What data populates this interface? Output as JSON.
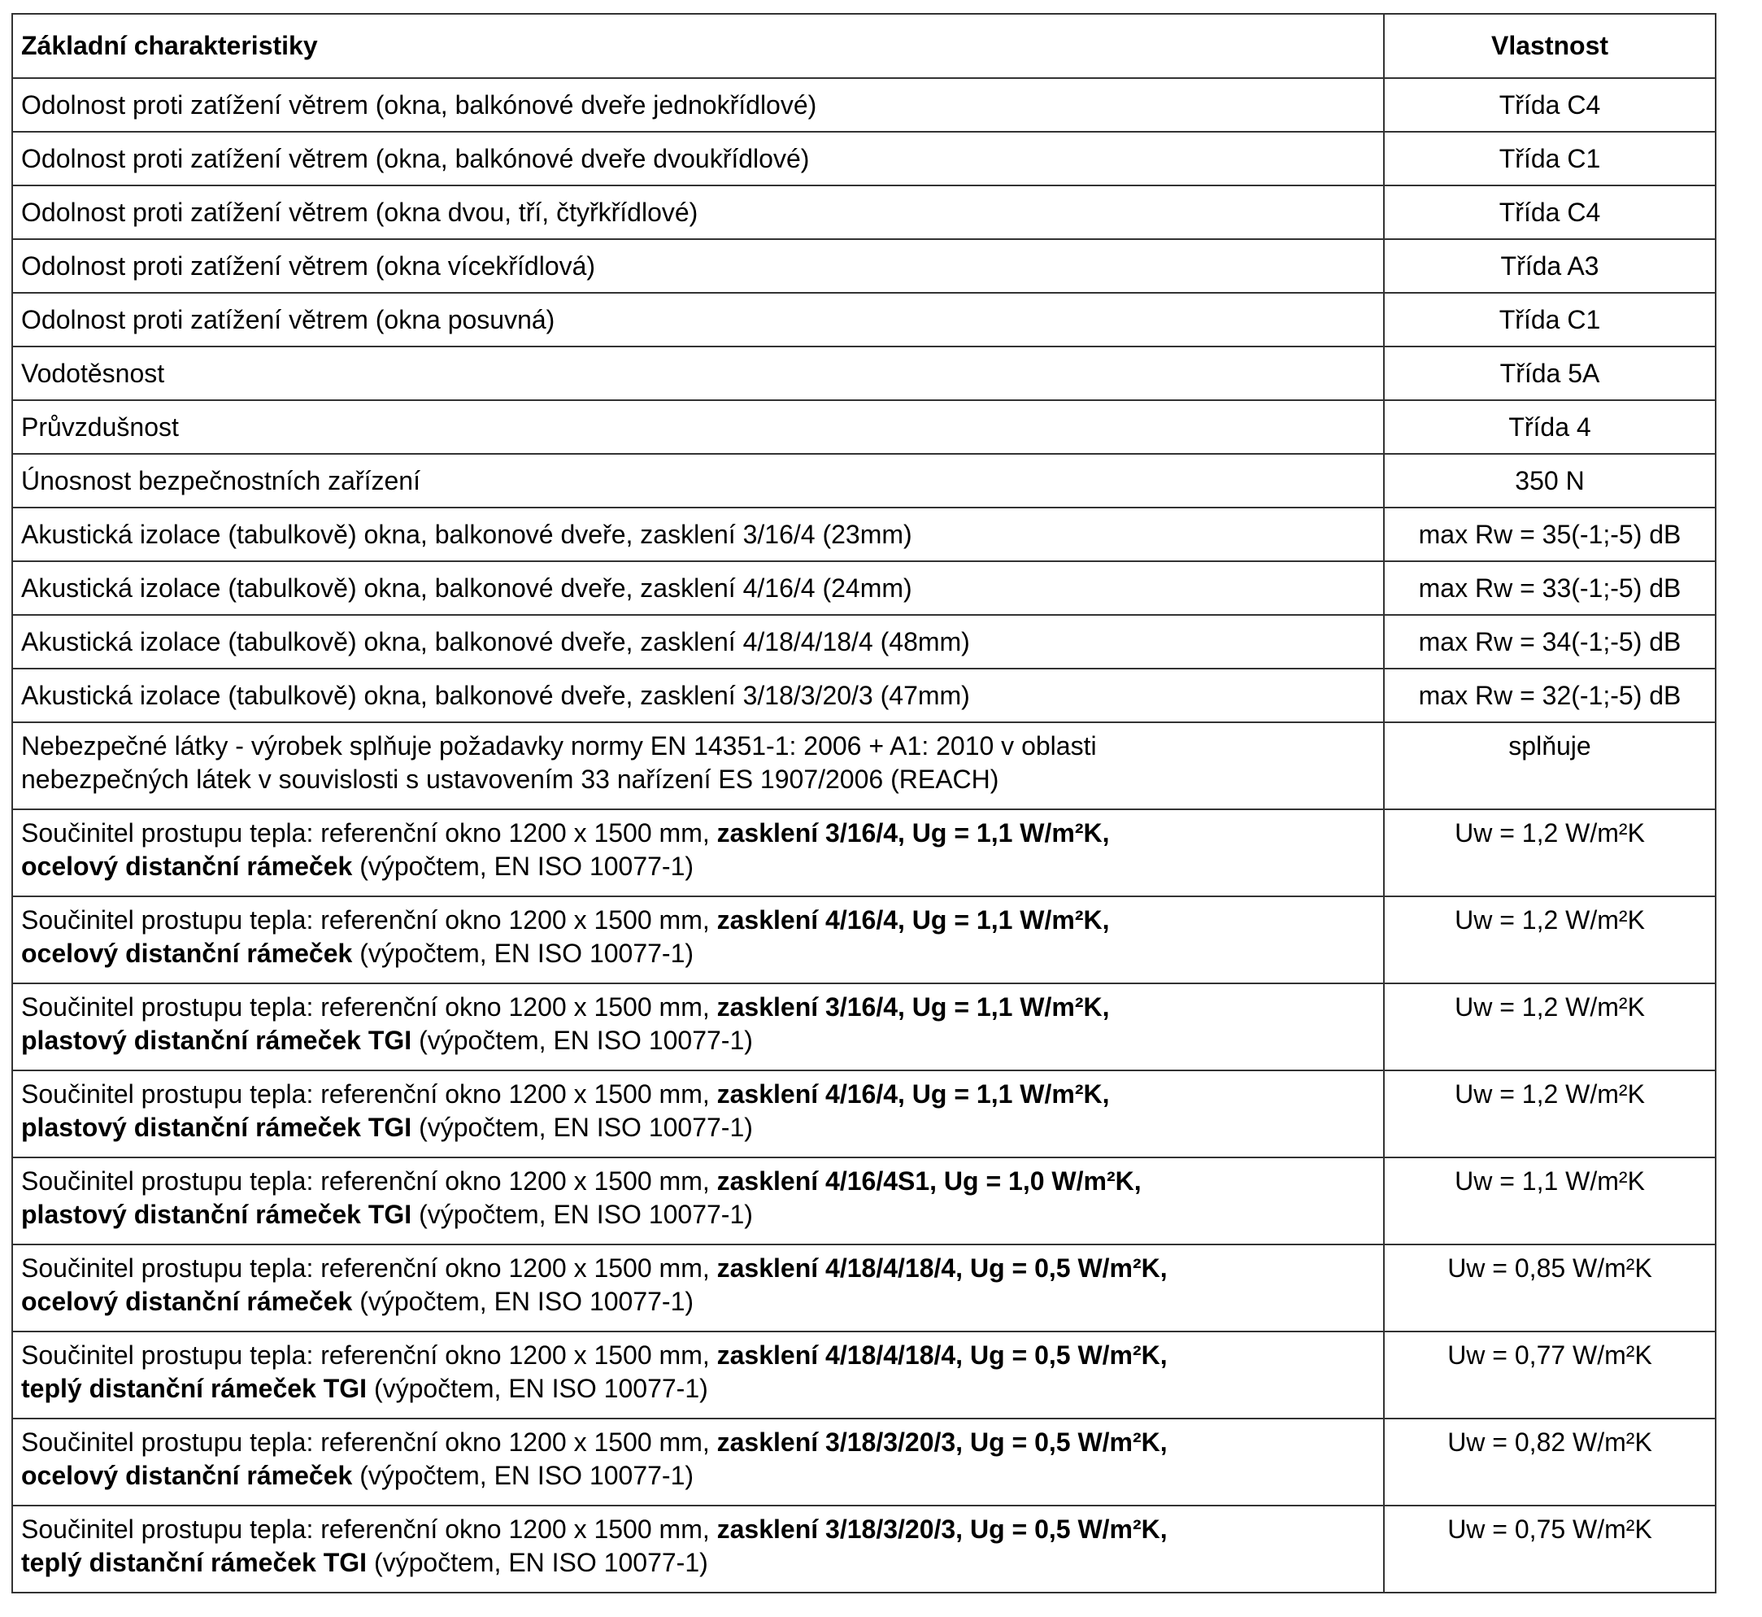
{
  "header": {
    "col1": "Základní charakteristiky",
    "col2": "Vlastnost"
  },
  "rows": [
    {
      "label": "Odolnost proti zatížení větrem (okna, balkónové dveře jednokřídlové)",
      "value": "Třída C4"
    },
    {
      "label": "Odolnost proti zatížení větrem (okna, balkónové dveře dvoukřídlové)",
      "value": "Třída C1"
    },
    {
      "label": "Odolnost proti zatížení větrem (okna dvou, tří, čtyřkřídlové)",
      "value": "Třída C4"
    },
    {
      "label": "Odolnost proti zatížení větrem (okna vícekřídlová)",
      "value": "Třída A3"
    },
    {
      "label": "Odolnost proti zatížení větrem (okna posuvná)",
      "value": "Třída C1"
    },
    {
      "label": "Vodotěsnost",
      "value": "Třída 5A"
    },
    {
      "label": "Průvzdušnost",
      "value": "Třída 4"
    },
    {
      "label": "Únosnost bezpečnostních zařízení",
      "value": "350 N"
    },
    {
      "label": "Akustická izolace (tabulkově) okna, balkonové dveře, zasklení 3/16/4 (23mm)",
      "value": "max Rw = 35(-1;-5) dB"
    },
    {
      "label": "Akustická izolace (tabulkově) okna, balkonové dveře, zasklení 4/16/4 (24mm)",
      "value": "max Rw = 33(-1;-5) dB"
    },
    {
      "label": "Akustická izolace (tabulkově) okna, balkonové dveře, zasklení 4/18/4/18/4 (48mm)",
      "value": "max Rw = 34(-1;-5) dB"
    },
    {
      "label": "Akustická izolace (tabulkově) okna, balkonové dveře, zasklení 3/18/3/20/3 (47mm)",
      "value": "max Rw = 32(-1;-5) dB"
    }
  ],
  "hazard_row": {
    "line1": "Nebezpečné látky - výrobek splňuje požadavky normy EN 14351-1: 2006 + A1: 2010 v oblasti",
    "line2": "nebezpečných látek v souvislosti s ustavovením 33 nařízení ES 1907/2006 (REACH)",
    "value": "splňuje"
  },
  "thermal_rows": [
    {
      "prefix": "Součinitel prostupu tepla: referenční okno 1200 x 1500 mm, ",
      "bold1": "zasklení 3/16/4, Ug = 1,1 W/m²K,",
      "bold2": "ocelový distanční rámeček",
      "suffix": " (výpočtem, EN ISO 10077-1)",
      "value": "Uw = 1,2 W/m²K"
    },
    {
      "prefix": "Součinitel prostupu tepla: referenční okno 1200 x 1500 mm, ",
      "bold1": "zasklení 4/16/4, Ug = 1,1 W/m²K,",
      "bold2": "ocelový distanční rámeček",
      "suffix": " (výpočtem, EN ISO 10077-1)",
      "value": "Uw = 1,2 W/m²K"
    },
    {
      "prefix": "Součinitel prostupu tepla: referenční okno 1200 x 1500 mm, ",
      "bold1": "zasklení 3/16/4, Ug = 1,1 W/m²K,",
      "bold2": "plastový distanční rámeček TGI",
      "suffix": " (výpočtem, EN ISO 10077-1)",
      "value": "Uw = 1,2 W/m²K"
    },
    {
      "prefix": "Součinitel prostupu tepla: referenční okno 1200 x 1500 mm, ",
      "bold1": "zasklení 4/16/4, Ug = 1,1 W/m²K,",
      "bold2": "plastový distanční rámeček TGI",
      "suffix": " (výpočtem, EN ISO 10077-1)",
      "value": "Uw = 1,2 W/m²K"
    },
    {
      "prefix": "Součinitel prostupu tepla: referenční okno 1200 x 1500 mm, ",
      "bold1": "zasklení 4/16/4S1, Ug = 1,0 W/m²K,",
      "bold2": "plastový distanční rámeček TGI",
      "suffix": " (výpočtem, EN ISO 10077-1)",
      "value": "Uw = 1,1 W/m²K"
    },
    {
      "prefix": "Součinitel prostupu tepla: referenční okno 1200 x 1500 mm, ",
      "bold1": "zasklení 4/18/4/18/4, Ug = 0,5 W/m²K,",
      "bold2": "ocelový distanční rámeček",
      "suffix": " (výpočtem, EN ISO 10077-1)",
      "value": "Uw = 0,85 W/m²K"
    },
    {
      "prefix": "Součinitel prostupu tepla: referenční okno 1200 x 1500 mm, ",
      "bold1": "zasklení 4/18/4/18/4, Ug = 0,5 W/m²K,",
      "bold2": "teplý distanční rámeček TGI",
      "suffix": " (výpočtem, EN ISO 10077-1)",
      "value": "Uw = 0,77 W/m²K"
    },
    {
      "prefix": "Součinitel prostupu tepla: referenční okno 1200 x 1500 mm, ",
      "bold1": "zasklení 3/18/3/20/3, Ug = 0,5 W/m²K,",
      "bold2": "ocelový distanční rámeček",
      "suffix": " (výpočtem, EN ISO 10077-1)",
      "value": "Uw = 0,82 W/m²K"
    },
    {
      "prefix": "Součinitel prostupu tepla: referenční okno 1200 x 1500 mm, ",
      "bold1": "zasklení 3/18/3/20/3, Ug = 0,5 W/m²K,",
      "bold2": "teplý distanční rámeček TGI",
      "suffix": " (výpočtem, EN ISO 10077-1)",
      "value": "Uw = 0,75 W/m²K"
    }
  ]
}
